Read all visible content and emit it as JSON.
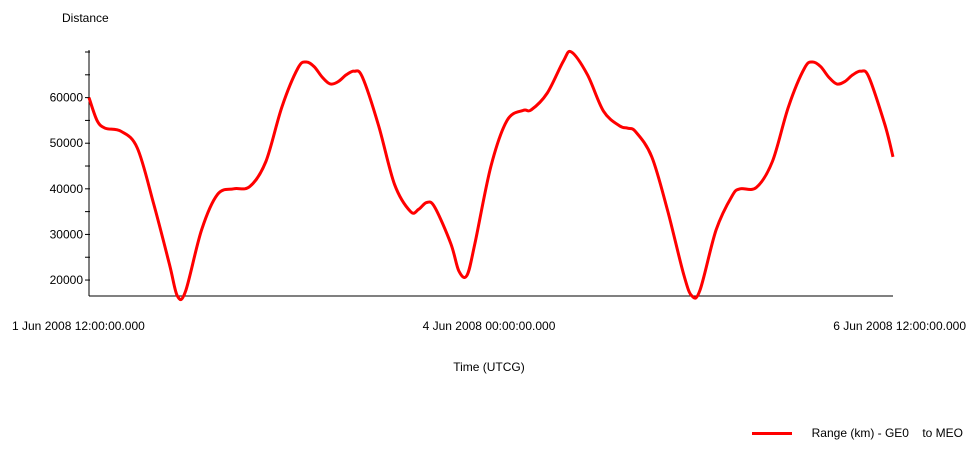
{
  "chart_data": {
    "type": "line",
    "title": "",
    "ylabel": "Distance",
    "xlabel": "Time (UTCG)",
    "x_ticks": [
      "1 Jun 2008 12:00:00.000",
      "4 Jun 2008 00:00:00.000",
      "6 Jun 2008 12:00:00.000"
    ],
    "x_range": [
      "2008-06-01T12:00:00",
      "2008-06-06T12:00:00"
    ],
    "y_ticks": [
      20000,
      30000,
      40000,
      50000,
      60000
    ],
    "ylim": [
      16500,
      70000
    ],
    "grid": false,
    "legend_position": "bottom-right",
    "series": [
      {
        "name": "Range (km) - GE0    to MEO",
        "color": "#ff0000",
        "points": [
          [
            "2008-06-01T12:00",
            60000
          ],
          [
            "2008-06-01T13:12",
            55000
          ],
          [
            "2008-06-01T14:24",
            53300
          ],
          [
            "2008-06-01T16:48",
            52600
          ],
          [
            "2008-06-01T19:12",
            49000
          ],
          [
            "2008-06-01T21:36",
            37000
          ],
          [
            "2008-06-02T00:00",
            23500
          ],
          [
            "2008-06-02T01:12",
            16500
          ],
          [
            "2008-06-02T02:24",
            17500
          ],
          [
            "2008-06-02T04:48",
            31000
          ],
          [
            "2008-06-02T07:12",
            38800
          ],
          [
            "2008-06-02T09:36",
            40000
          ],
          [
            "2008-06-02T12:00",
            40500
          ],
          [
            "2008-06-02T14:24",
            46000
          ],
          [
            "2008-06-02T16:48",
            58000
          ],
          [
            "2008-06-02T19:12",
            66500
          ],
          [
            "2008-06-02T20:24",
            67800
          ],
          [
            "2008-06-02T21:36",
            66800
          ],
          [
            "2008-06-02T22:48",
            64500
          ],
          [
            "2008-06-03T00:00",
            63000
          ],
          [
            "2008-06-03T01:12",
            63500
          ],
          [
            "2008-06-03T02:24",
            65000
          ],
          [
            "2008-06-03T03:36",
            65800
          ],
          [
            "2008-06-03T04:48",
            64500
          ],
          [
            "2008-06-03T07:12",
            54000
          ],
          [
            "2008-06-03T09:36",
            41000
          ],
          [
            "2008-06-03T12:00",
            35000
          ],
          [
            "2008-06-03T13:12",
            35500
          ],
          [
            "2008-06-03T14:24",
            37000
          ],
          [
            "2008-06-03T15:36",
            36000
          ],
          [
            "2008-06-03T18:00",
            28000
          ],
          [
            "2008-06-03T19:12",
            22000
          ],
          [
            "2008-06-03T20:24",
            21000
          ],
          [
            "2008-06-03T21:36",
            28000
          ],
          [
            "2008-06-04T00:00",
            45000
          ],
          [
            "2008-06-04T02:24",
            55000
          ],
          [
            "2008-06-04T04:48",
            57200
          ],
          [
            "2008-06-04T06:00",
            57300
          ],
          [
            "2008-06-04T08:24",
            61000
          ],
          [
            "2008-06-04T10:48",
            68000
          ],
          [
            "2008-06-04T12:00",
            70000
          ],
          [
            "2008-06-04T14:24",
            65000
          ],
          [
            "2008-06-04T16:48",
            57000
          ],
          [
            "2008-06-04T19:12",
            53800
          ],
          [
            "2008-06-04T20:24",
            53300
          ],
          [
            "2008-06-04T21:36",
            52500
          ],
          [
            "2008-06-05T00:00",
            47000
          ],
          [
            "2008-06-05T02:24",
            35000
          ],
          [
            "2008-06-05T04:48",
            21000
          ],
          [
            "2008-06-05T06:00",
            16500
          ],
          [
            "2008-06-05T07:12",
            17800
          ],
          [
            "2008-06-05T09:36",
            31000
          ],
          [
            "2008-06-05T12:00",
            38500
          ],
          [
            "2008-06-05T13:12",
            40000
          ],
          [
            "2008-06-05T15:36",
            40300
          ],
          [
            "2008-06-05T18:00",
            46000
          ],
          [
            "2008-06-05T20:24",
            58000
          ],
          [
            "2008-06-05T22:48",
            66500
          ],
          [
            "2008-06-06T00:00",
            67800
          ],
          [
            "2008-06-06T01:12",
            66800
          ],
          [
            "2008-06-06T02:24",
            64500
          ],
          [
            "2008-06-06T03:36",
            63000
          ],
          [
            "2008-06-06T04:48",
            63500
          ],
          [
            "2008-06-06T06:00",
            65000
          ],
          [
            "2008-06-06T07:12",
            65800
          ],
          [
            "2008-06-06T08:24",
            64500
          ],
          [
            "2008-06-06T10:48",
            54000
          ],
          [
            "2008-06-06T12:00",
            47000
          ]
        ]
      }
    ],
    "continuation_note": ""
  }
}
